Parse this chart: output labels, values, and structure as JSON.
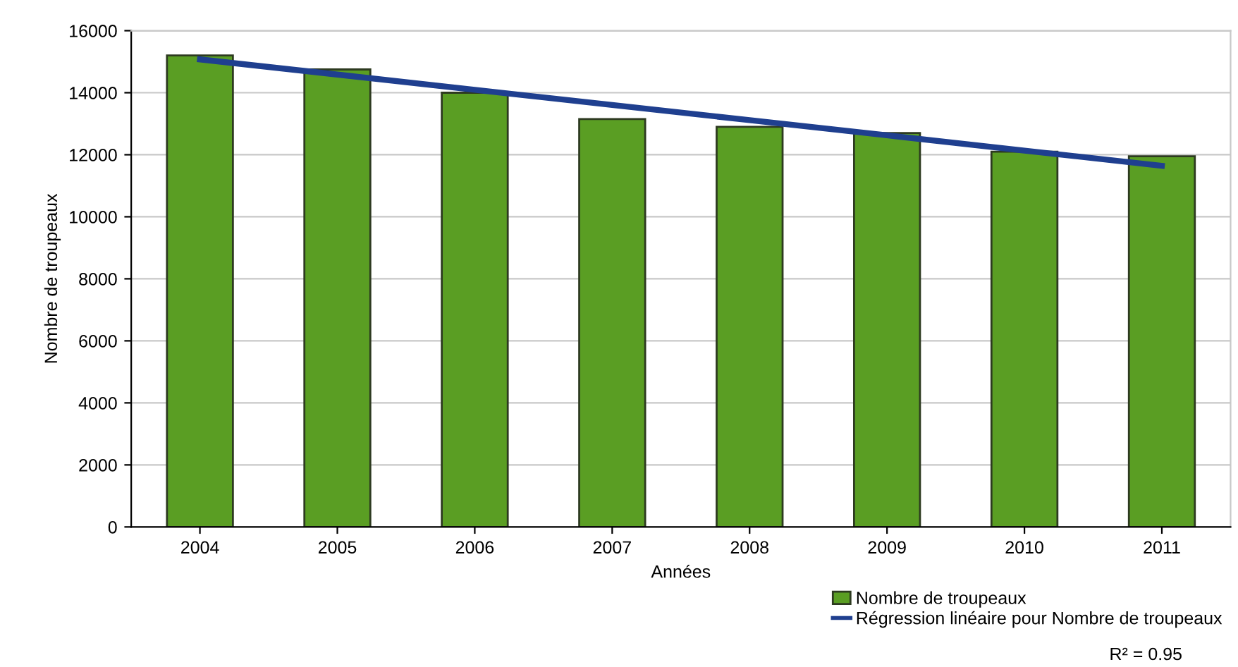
{
  "chart_data": {
    "type": "bar",
    "xlabel": "Années",
    "ylabel": "Nombre de troupeaux",
    "categories": [
      "2004",
      "2005",
      "2006",
      "2007",
      "2008",
      "2009",
      "2010",
      "2011"
    ],
    "series": [
      {
        "name": "Nombre de troupeaux",
        "color": "#5a9e23",
        "values": [
          15200,
          14750,
          14000,
          13150,
          12900,
          12700,
          12100,
          11950
        ]
      },
      {
        "name": "Régression linéaire pour Nombre de troupeaux",
        "type": "line",
        "color": "#1f3f8f",
        "values": [
          15075,
          14585,
          14095,
          13605,
          13115,
          12625,
          12135,
          11645
        ]
      }
    ],
    "annotations": [
      "R² = 0.95"
    ],
    "ylim": [
      0,
      16000
    ],
    "yticks": [
      0,
      2000,
      4000,
      6000,
      8000,
      10000,
      12000,
      14000,
      16000
    ],
    "grid": "y",
    "legend": "bottom right"
  }
}
